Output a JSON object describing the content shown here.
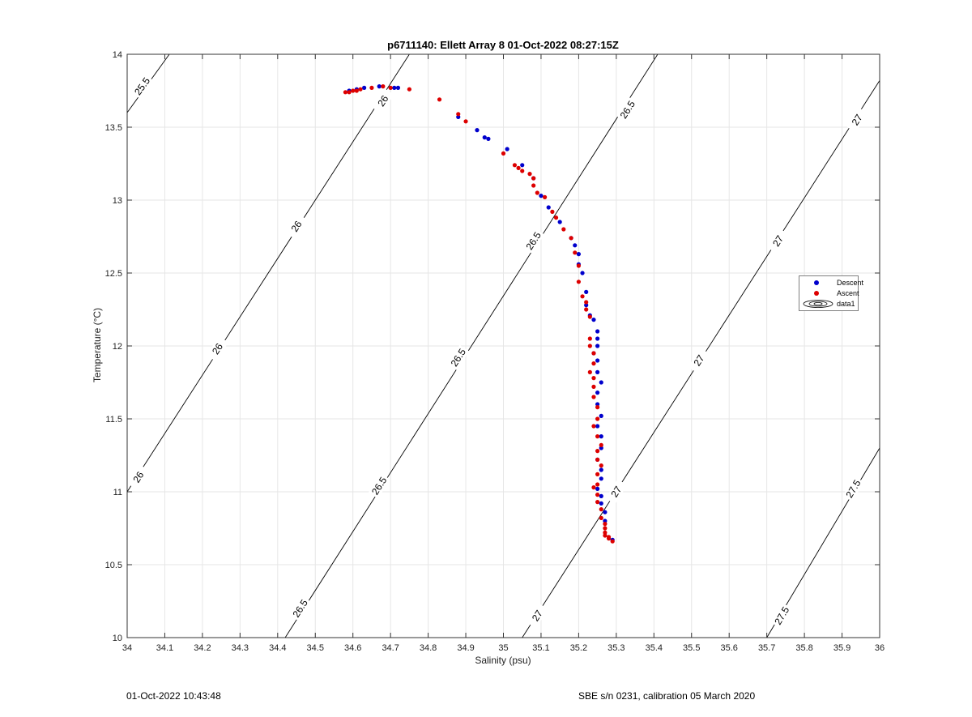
{
  "chart_data": {
    "type": "scatter",
    "title": "p6711140: Ellett Array 8 01-Oct-2022 08:27:15Z",
    "xlabel": "Salinity (psu)",
    "ylabel": "Temperature (°C)",
    "xlim": [
      34,
      36
    ],
    "ylim": [
      10,
      14
    ],
    "xticks": [
      "34",
      "34.1",
      "34.2",
      "34.3",
      "34.4",
      "34.5",
      "34.6",
      "34.7",
      "34.8",
      "34.9",
      "35",
      "35.1",
      "35.2",
      "35.3",
      "35.4",
      "35.5",
      "35.6",
      "35.7",
      "35.8",
      "35.9",
      "36"
    ],
    "yticks": [
      "10",
      "10.5",
      "11",
      "11.5",
      "12",
      "12.5",
      "13",
      "13.5",
      "14"
    ],
    "grid": true,
    "legend_position": "right",
    "legend": [
      "Descent",
      "Ascent",
      "data1"
    ],
    "colors": {
      "descent": "#0000cc",
      "ascent": "#dd0000",
      "contour": "#000000",
      "grid": "#e6e6e6"
    },
    "series": [
      {
        "name": "Descent",
        "x": [
          34.59,
          34.61,
          34.63,
          34.67,
          34.71,
          34.72,
          34.88,
          34.93,
          34.95,
          34.96,
          35.01,
          35.05,
          35.08,
          35.1,
          35.12,
          35.15,
          35.18,
          35.19,
          35.2,
          35.2,
          35.21,
          35.22,
          35.22,
          35.23,
          35.24,
          35.25,
          35.25,
          35.25,
          35.24,
          35.25,
          35.25,
          35.26,
          35.25,
          35.25,
          35.26,
          35.25,
          35.26,
          35.26,
          35.25,
          35.26,
          35.26,
          35.25,
          35.26,
          35.26,
          35.27,
          35.27,
          35.29
        ],
        "y": [
          13.75,
          13.76,
          13.77,
          13.78,
          13.77,
          13.77,
          13.57,
          13.48,
          13.43,
          13.42,
          13.35,
          13.24,
          13.15,
          13.03,
          12.95,
          12.85,
          12.74,
          12.69,
          12.63,
          12.56,
          12.5,
          12.37,
          12.28,
          12.21,
          12.18,
          12.1,
          12.05,
          12.0,
          11.95,
          11.9,
          11.82,
          11.75,
          11.68,
          11.6,
          11.52,
          11.45,
          11.38,
          11.3,
          11.22,
          11.15,
          11.09,
          11.02,
          10.97,
          10.92,
          10.86,
          10.8,
          10.67
        ]
      },
      {
        "name": "Ascent",
        "x": [
          34.58,
          34.59,
          34.6,
          34.61,
          34.62,
          34.65,
          34.68,
          34.7,
          34.75,
          34.83,
          34.88,
          34.9,
          35.0,
          35.03,
          35.04,
          35.05,
          35.07,
          35.08,
          35.08,
          35.09,
          35.11,
          35.13,
          35.14,
          35.16,
          35.18,
          35.19,
          35.2,
          35.2,
          35.21,
          35.22,
          35.22,
          35.23,
          35.23,
          35.23,
          35.24,
          35.24,
          35.23,
          35.24,
          35.24,
          35.24,
          35.25,
          35.25,
          35.24,
          35.25,
          35.26,
          35.25,
          35.25,
          35.26,
          35.25,
          35.25,
          35.24,
          35.25,
          35.25,
          35.26,
          35.26,
          35.27,
          35.27,
          35.27,
          35.27,
          35.28,
          35.28,
          35.29
        ],
        "y": [
          13.74,
          13.74,
          13.75,
          13.75,
          13.76,
          13.77,
          13.78,
          13.77,
          13.76,
          13.69,
          13.59,
          13.54,
          13.32,
          13.24,
          13.22,
          13.2,
          13.18,
          13.15,
          13.1,
          13.05,
          13.02,
          12.92,
          12.88,
          12.8,
          12.74,
          12.64,
          12.55,
          12.44,
          12.34,
          12.3,
          12.25,
          12.2,
          12.05,
          12.0,
          11.95,
          11.88,
          11.82,
          11.78,
          11.72,
          11.65,
          11.58,
          11.5,
          11.45,
          11.38,
          11.32,
          11.28,
          11.22,
          11.18,
          11.12,
          11.05,
          11.03,
          10.98,
          10.93,
          10.88,
          10.82,
          10.78,
          10.75,
          10.72,
          10.7,
          10.69,
          10.68,
          10.66
        ]
      }
    ],
    "contours": [
      {
        "level": "25.5",
        "x": [
          34.0,
          34.112
        ],
        "y": [
          13.6,
          14.0
        ],
        "labels": [
          {
            "text": "25.5",
            "x": 34.04,
            "y": 13.78
          }
        ]
      },
      {
        "level": "26",
        "x": [
          34.0,
          34.75
        ],
        "y": [
          11.0,
          14.0
        ],
        "labels": [
          {
            "text": "26",
            "x": 34.03,
            "y": 11.1
          },
          {
            "text": "26",
            "x": 34.24,
            "y": 11.98
          },
          {
            "text": "26",
            "x": 34.45,
            "y": 12.82
          },
          {
            "text": "26",
            "x": 34.68,
            "y": 13.68
          }
        ]
      },
      {
        "level": "26.5",
        "x": [
          34.42,
          35.41
        ],
        "y": [
          10.0,
          14.0
        ],
        "labels": [
          {
            "text": "26.5",
            "x": 34.46,
            "y": 10.2
          },
          {
            "text": "26.5",
            "x": 34.67,
            "y": 11.04
          },
          {
            "text": "26.5",
            "x": 34.88,
            "y": 11.92
          },
          {
            "text": "26.5",
            "x": 35.08,
            "y": 12.72
          },
          {
            "text": "26.5",
            "x": 35.33,
            "y": 13.62
          }
        ]
      },
      {
        "level": "27",
        "x": [
          35.05,
          36.0
        ],
        "y": [
          10.0,
          13.82
        ],
        "labels": [
          {
            "text": "27",
            "x": 35.09,
            "y": 10.15
          },
          {
            "text": "27",
            "x": 35.3,
            "y": 11.0
          },
          {
            "text": "27",
            "x": 35.52,
            "y": 11.9
          },
          {
            "text": "27",
            "x": 35.73,
            "y": 12.72
          },
          {
            "text": "27",
            "x": 35.94,
            "y": 13.55
          }
        ]
      },
      {
        "level": "27.5",
        "x": [
          35.7,
          36.0
        ],
        "y": [
          10.0,
          11.3
        ],
        "labels": [
          {
            "text": "27.5",
            "x": 35.74,
            "y": 10.15
          },
          {
            "text": "27.5",
            "x": 35.93,
            "y": 11.02
          }
        ]
      }
    ]
  },
  "footer": {
    "left": "01-Oct-2022 10:43:48",
    "right": "SBE s/n 0231, calibration 05 March 2020"
  }
}
